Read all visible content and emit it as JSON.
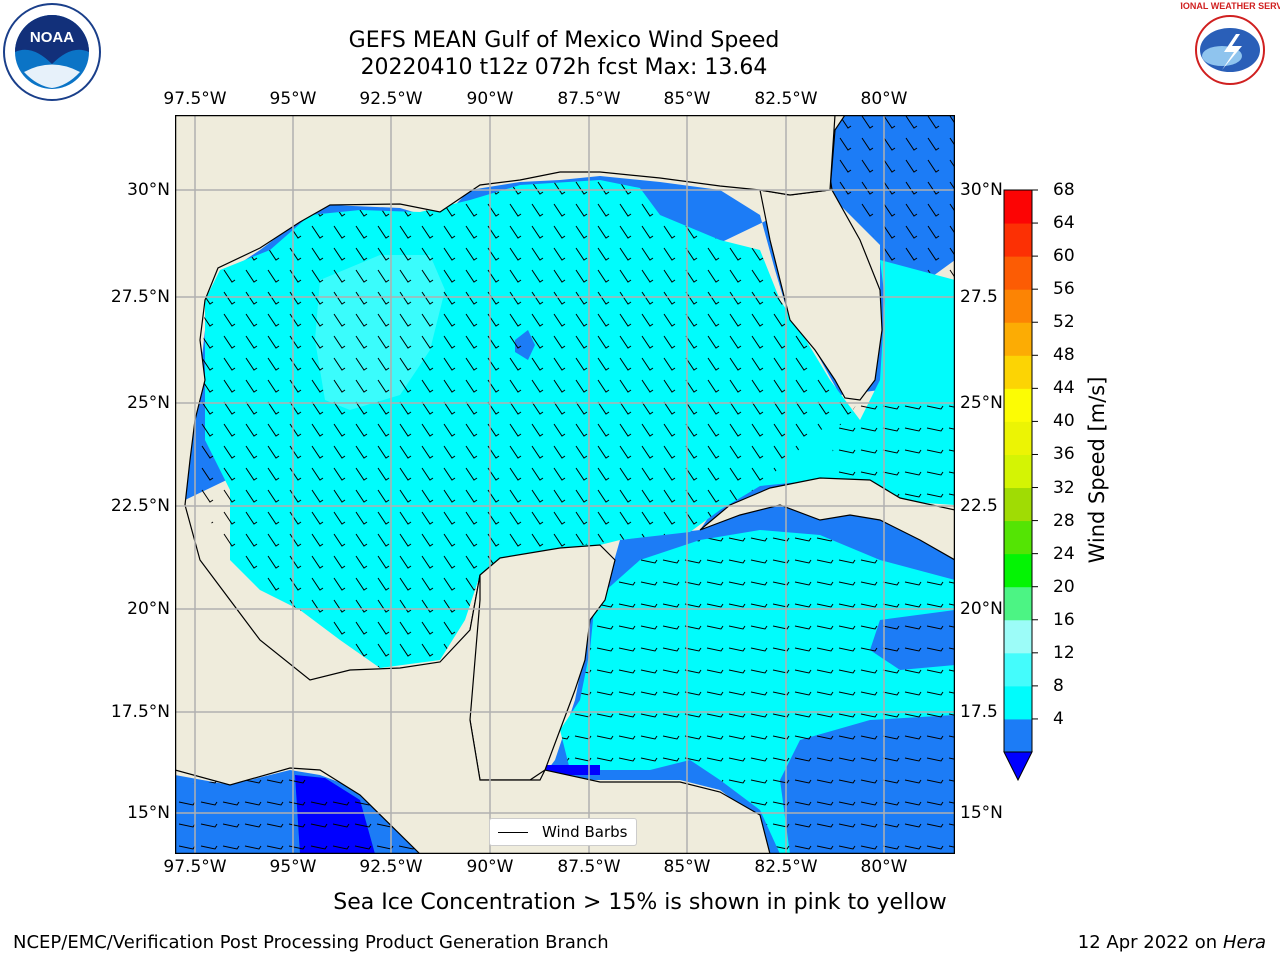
{
  "title": {
    "line1": "GEFS MEAN Gulf of Mexico Wind Speed",
    "line2": "20220410 t12z 072h fcst   Max: 13.64"
  },
  "map": {
    "lon_labels": [
      "97.5°W",
      "95°W",
      "92.5°W",
      "90°W",
      "87.5°W",
      "85°W",
      "82.5°W",
      "80°W"
    ],
    "lat_labels_left": [
      "30°N",
      "27.5°N",
      "25°N",
      "22.5°N",
      "20°N",
      "17.5°N",
      "15°N"
    ],
    "lat_labels_right": [
      "30°N",
      "27.5",
      "25°N",
      "22.5",
      "20°N",
      "17.5",
      "15°N"
    ],
    "land_color": "#efecdc",
    "legend_label": "Wind Barbs"
  },
  "colorbar": {
    "label": "Wind Speed [m/s]",
    "ticks": [
      "68",
      "64",
      "60",
      "56",
      "52",
      "48",
      "44",
      "40",
      "36",
      "32",
      "28",
      "24",
      "20",
      "16",
      "12",
      "8",
      "4"
    ],
    "colors_bottom_to_top": [
      "#1c7cf6",
      "#00fcfc",
      "#44fcfc",
      "#9cfcf8",
      "#4cf484",
      "#04f404",
      "#54e404",
      "#a0dc04",
      "#d4f404",
      "#ecf404",
      "#fcfc04",
      "#fcd404",
      "#fcac04",
      "#fc8404",
      "#fc5c04",
      "#fc3004",
      "#fc0404"
    ],
    "under_color": "#0000ff"
  },
  "logos": {
    "noaa_text": "NOAA",
    "nws_text": "NATIONAL WEATHER SERVICE"
  },
  "note": "Sea Ice Concentration > 15% is shown in pink to yellow",
  "footer": {
    "left": "NCEP/EMC/Verification Post Processing Product Generation Branch",
    "right_prefix": "12 Apr 2022 on ",
    "right_machine": "Hera"
  }
}
